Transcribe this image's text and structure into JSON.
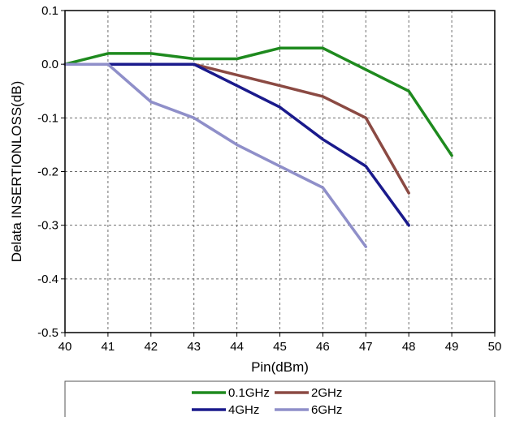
{
  "chart_data": {
    "type": "line",
    "title": "",
    "xlabel": "Pin(dBm)",
    "ylabel": "Delata INSERTIONLOSS(dB)",
    "xlim": [
      40,
      50
    ],
    "ylim": [
      -0.5,
      0.1
    ],
    "x_ticks": [
      "40",
      "41",
      "42",
      "43",
      "44",
      "45",
      "46",
      "47",
      "48",
      "49",
      "50"
    ],
    "y_ticks": [
      "0.1",
      "0.0",
      "-0.1",
      "-0.2",
      "-0.3",
      "-0.4",
      "-0.5"
    ],
    "grid": true,
    "legend_position": "bottom",
    "series": [
      {
        "name": "0.1GHz",
        "color": "#1e8a1e",
        "x": [
          40,
          41,
          42,
          43,
          44,
          45,
          46,
          47,
          48,
          49
        ],
        "values": [
          0.0,
          0.02,
          0.02,
          0.01,
          0.01,
          0.03,
          0.03,
          -0.01,
          -0.05,
          -0.17
        ]
      },
      {
        "name": "2GHz",
        "color": "#8b4a43",
        "x": [
          40,
          41,
          42,
          43,
          44,
          45,
          46,
          47,
          48
        ],
        "values": [
          0.0,
          0.0,
          0.0,
          0.0,
          -0.02,
          -0.04,
          -0.06,
          -0.1,
          -0.24
        ]
      },
      {
        "name": "4GHz",
        "color": "#1a1a8c",
        "x": [
          40,
          41,
          42,
          43,
          44,
          45,
          46,
          47,
          48
        ],
        "values": [
          0.0,
          0.0,
          0.0,
          0.0,
          -0.04,
          -0.08,
          -0.14,
          -0.19,
          -0.3
        ]
      },
      {
        "name": "6GHz",
        "color": "#8f8fc9",
        "x": [
          40,
          41,
          42,
          43,
          44,
          45,
          46,
          47
        ],
        "values": [
          0.0,
          0.0,
          -0.07,
          -0.1,
          -0.15,
          -0.19,
          -0.23,
          -0.34
        ]
      }
    ]
  }
}
